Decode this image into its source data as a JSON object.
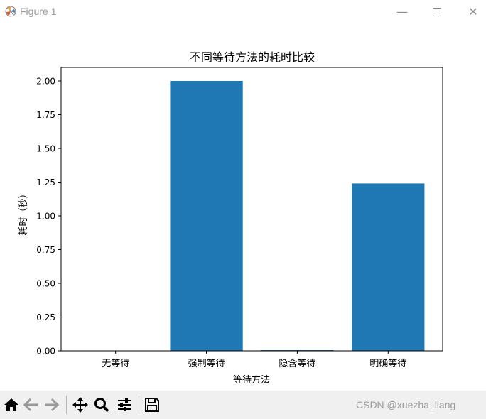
{
  "window": {
    "title": "Figure 1",
    "minimize_glyph": "—",
    "close_glyph": "✕"
  },
  "chart_data": {
    "type": "bar",
    "title": "不同等待方法的耗时比较",
    "xlabel": "等待方法",
    "ylabel": "耗时（秒）",
    "categories": [
      "无等待",
      "强制等待",
      "隐含等待",
      "明确等待"
    ],
    "values": [
      0.0,
      2.0,
      0.005,
      1.24
    ],
    "ylim": [
      0,
      2.1
    ],
    "yticks": [
      0.0,
      0.25,
      0.5,
      0.75,
      1.0,
      1.25,
      1.5,
      1.75,
      2.0
    ],
    "ytick_labels": [
      "0.00",
      "0.25",
      "0.50",
      "0.75",
      "1.00",
      "1.25",
      "1.50",
      "1.75",
      "2.00"
    ],
    "bar_color": "#1f77b4",
    "grid": false
  },
  "toolbar": {
    "icons": [
      "home-icon",
      "back-arrow-icon",
      "forward-arrow-icon",
      "pan-icon",
      "zoom-icon",
      "configure-subplots-icon",
      "save-icon"
    ],
    "watermark": "CSDN @xuezha_liang"
  }
}
